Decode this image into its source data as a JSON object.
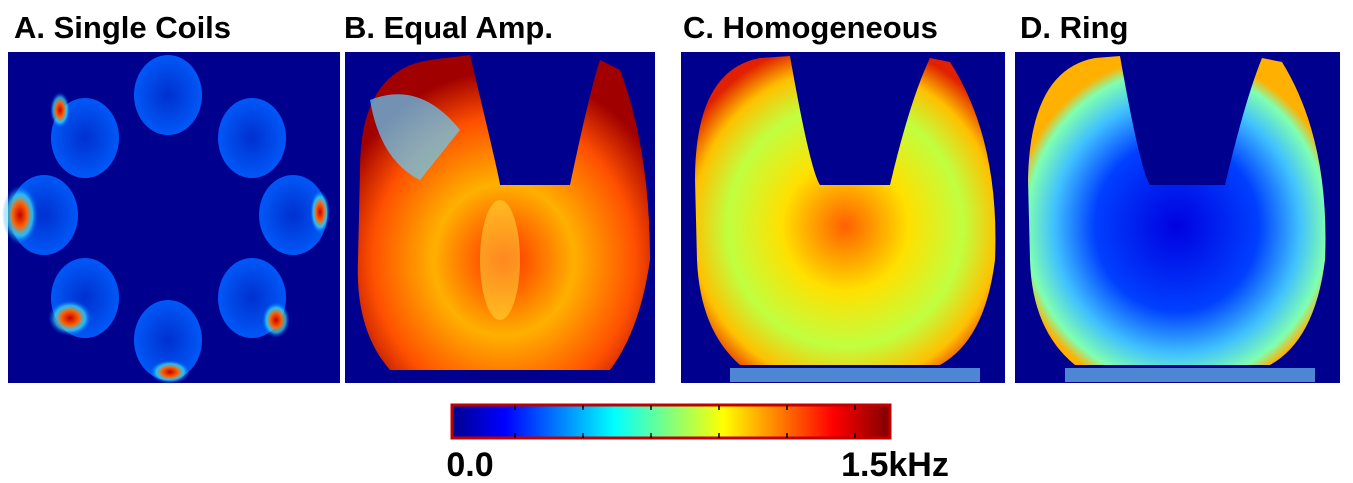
{
  "panels": [
    {
      "title": "A. Single Coils"
    },
    {
      "title": "B. Equal Amp."
    },
    {
      "title": "C. Homogeneous"
    },
    {
      "title": "D. Ring"
    }
  ],
  "colorbar": {
    "min_label": "0.0",
    "max_label": "1.5kHz"
  }
}
